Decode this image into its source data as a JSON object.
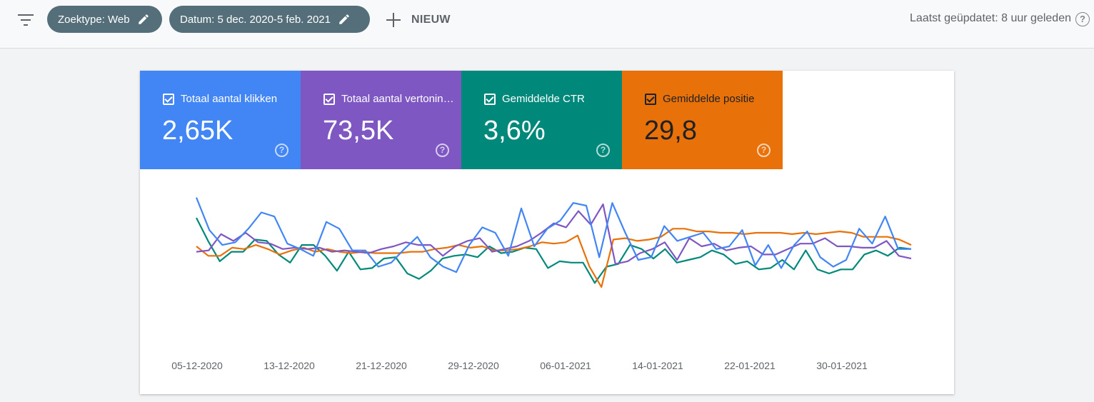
{
  "toolbar": {
    "chip_search_type": "Zoektype: Web",
    "chip_date": "Datum: 5 dec. 2020-5 feb. 2021",
    "new_label": "NIEUW",
    "last_updated": "Laatst geüpdatet: 8 uur geleden",
    "help_glyph": "?"
  },
  "metrics": [
    {
      "label": "Totaal aantal klikken",
      "value": "2,65K",
      "color": "#4285f4"
    },
    {
      "label": "Totaal aantal vertoningen",
      "value": "73,5K",
      "color": "#7e57c2"
    },
    {
      "label": "Gemiddelde CTR",
      "value": "3,6%",
      "color": "#00897b"
    },
    {
      "label": "Gemiddelde positie",
      "value": "29,8",
      "color": "#e8710a"
    }
  ],
  "chart_data": {
    "type": "line",
    "x_tick_labels": [
      "05-12-2020",
      "13-12-2020",
      "21-12-2020",
      "29-12-2020",
      "06-01-2021",
      "14-01-2021",
      "22-01-2021",
      "30-01-2021"
    ],
    "y_axis_visible": false,
    "series": [
      {
        "color": "#4285f4",
        "values": [
          96,
          72,
          61,
          63,
          73,
          85,
          82,
          62,
          58,
          53,
          78,
          73,
          57,
          57,
          45,
          48,
          58,
          67,
          52,
          45,
          41,
          61,
          74,
          70,
          53,
          88,
          60,
          73,
          79,
          92,
          90,
          52,
          92,
          70,
          50,
          52,
          75,
          64,
          67,
          70,
          58,
          60,
          72,
          46,
          61,
          44,
          61,
          71,
          52,
          45,
          50,
          73,
          62,
          82,
          58,
          58
        ]
      },
      {
        "color": "#7e57c2",
        "values": [
          56,
          57,
          69,
          64,
          70,
          63,
          62,
          58,
          59,
          58,
          59,
          56,
          57,
          56,
          55,
          58,
          60,
          63,
          61,
          61,
          53,
          60,
          64,
          66,
          56,
          58,
          60,
          64,
          70,
          77,
          74,
          86,
          76,
          91,
          47,
          49,
          55,
          58,
          63,
          50,
          66,
          60,
          62,
          57,
          59,
          60,
          54,
          54,
          58,
          62,
          62,
          66,
          60,
          60,
          59,
          59,
          64,
          53,
          51
        ]
      },
      {
        "color": "#e8710a",
        "values": [
          60,
          53,
          53,
          59,
          58,
          61,
          58,
          54,
          57,
          59,
          56,
          58,
          56,
          55,
          56,
          55,
          55,
          55,
          56,
          56,
          58,
          59,
          61,
          59,
          60,
          57,
          57,
          58,
          60,
          63,
          62,
          63,
          68,
          45,
          30,
          65,
          66,
          64,
          65,
          67,
          73,
          73,
          71,
          71,
          70,
          70,
          69,
          70,
          70,
          70,
          69,
          70,
          69,
          70,
          71,
          70,
          67,
          67,
          67,
          65,
          61
        ]
      },
      {
        "color": "#00897b",
        "values": [
          81,
          64,
          49,
          56,
          56,
          65,
          64,
          54,
          48,
          61,
          61,
          53,
          42,
          56,
          43,
          44,
          51,
          52,
          40,
          36,
          42,
          51,
          53,
          54,
          52,
          60,
          55,
          56,
          59,
          58,
          44,
          49,
          48,
          48,
          33,
          45,
          47,
          61,
          58,
          51,
          58,
          48,
          50,
          52,
          57,
          54,
          47,
          49,
          43,
          44,
          50,
          43,
          57,
          43,
          40,
          43,
          43,
          54,
          57,
          53,
          59,
          58
        ]
      }
    ]
  }
}
